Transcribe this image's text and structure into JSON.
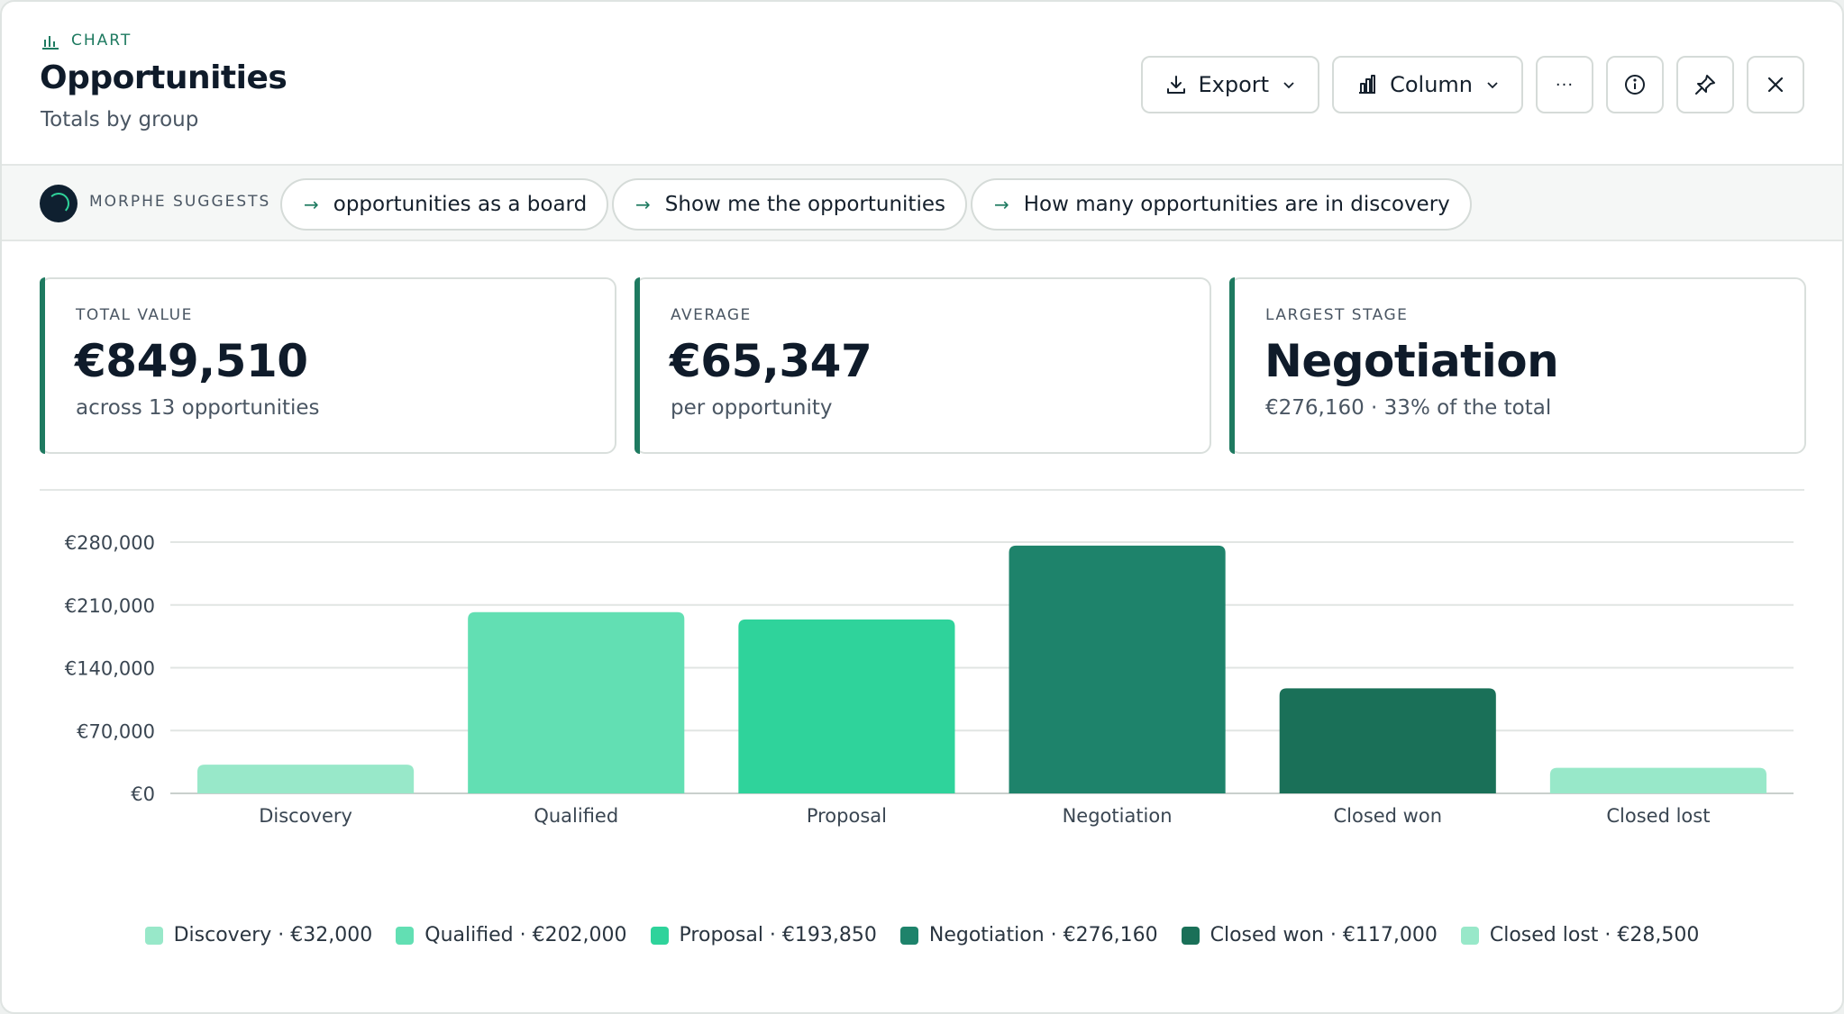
{
  "header": {
    "kicker": "CHART",
    "title": "Opportunities",
    "subtitle": "Totals by group",
    "export_label": "Export",
    "type_label": "Column",
    "more_label": "···"
  },
  "suggest": {
    "label": "MORPHE SUGGESTS",
    "chips": [
      "opportunities as a board",
      "Show me the opportunities",
      "How many opportunities are in discovery"
    ],
    "arrow": "→"
  },
  "kpis": [
    {
      "label": "TOTAL VALUE",
      "value": "€849,510",
      "note": "across 13 opportunities"
    },
    {
      "label": "AVERAGE",
      "value": "€65,347",
      "note": "per opportunity"
    },
    {
      "label": "LARGEST STAGE",
      "value": "Negotiation",
      "note": "€276,160 · 33% of the total"
    }
  ],
  "chart_data": {
    "type": "bar",
    "categories": [
      "Discovery",
      "Qualified",
      "Proposal",
      "Negotiation",
      "Closed won",
      "Closed lost"
    ],
    "values": [
      32000,
      202000,
      193850,
      276160,
      117000,
      28500
    ],
    "colors": [
      "#98e8c9",
      "#62dfb3",
      "#2fd39b",
      "#1e836b",
      "#1a7058",
      "#98e8c9"
    ],
    "ylim": [
      0,
      280000
    ],
    "yticks": [
      0,
      70000,
      140000,
      210000,
      280000
    ],
    "ytick_labels": [
      "€0",
      "€70,000",
      "€140,000",
      "€210,000",
      "€280,000"
    ],
    "grid": true,
    "legend": [
      "Discovery · €32,000",
      "Qualified · €202,000",
      "Proposal · €193,850",
      "Negotiation · €276,160",
      "Closed won · €117,000",
      "Closed lost · €28,500"
    ],
    "legend_position": "bottom"
  }
}
